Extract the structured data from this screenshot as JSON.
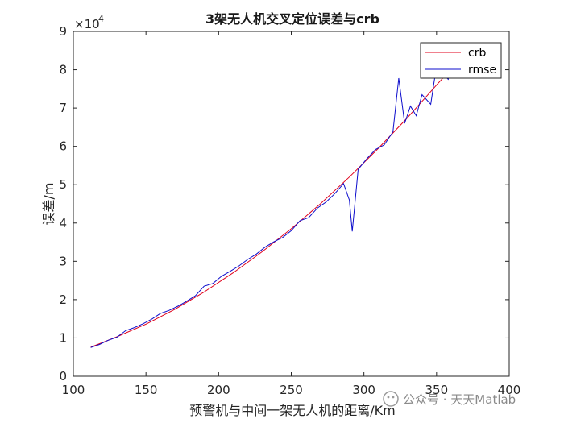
{
  "chart_data": {
    "type": "line",
    "title": "3架无人机交叉定位误差与crb",
    "xlabel": "预警机与中间一架无人机的距离/Km",
    "ylabel": "误差/m",
    "xlim": [
      100,
      400
    ],
    "ylim": [
      0,
      90000
    ],
    "x_ticks": [
      100,
      150,
      200,
      250,
      300,
      350,
      400
    ],
    "y_ticks": [
      0,
      1,
      2,
      3,
      4,
      5,
      6,
      7,
      8,
      9
    ],
    "y_exponent_multiplier": "×10",
    "y_exponent_power": "4",
    "grid": false,
    "legend_position": "top-right",
    "series": [
      {
        "name": "crb",
        "color": "#e0001b",
        "x": [
          112,
          130,
          150,
          170,
          190,
          210,
          230,
          250,
          270,
          290,
          310,
          330,
          350,
          360
        ],
        "values": [
          7600,
          10300,
          13600,
          17500,
          22000,
          27000,
          32500,
          38500,
          45000,
          52000,
          59500,
          67500,
          76000,
          80200
        ]
      },
      {
        "name": "rmse",
        "color": "#0d0dcc",
        "x": [
          112,
          118,
          124,
          130,
          136,
          142,
          148,
          154,
          160,
          166,
          172,
          178,
          184,
          190,
          196,
          202,
          208,
          214,
          220,
          226,
          232,
          238,
          244,
          250,
          256,
          262,
          268,
          274,
          280,
          286,
          290,
          292,
          296,
          302,
          308,
          314,
          320,
          324,
          328,
          332,
          336,
          340,
          346,
          350,
          354,
          358,
          360
        ],
        "values": [
          7500,
          8300,
          9400,
          10200,
          11900,
          12700,
          13700,
          14900,
          16400,
          17200,
          18300,
          19600,
          21000,
          23500,
          24200,
          26100,
          27400,
          28800,
          30500,
          31900,
          33700,
          35100,
          36200,
          38000,
          40600,
          41400,
          43900,
          45500,
          47700,
          50300,
          46000,
          37800,
          54000,
          56800,
          59200,
          60400,
          63800,
          77800,
          66000,
          70500,
          68000,
          73500,
          71000,
          81000,
          79000,
          77500,
          80500
        ]
      }
    ]
  },
  "watermark": "公众号 · 天天Matlab"
}
